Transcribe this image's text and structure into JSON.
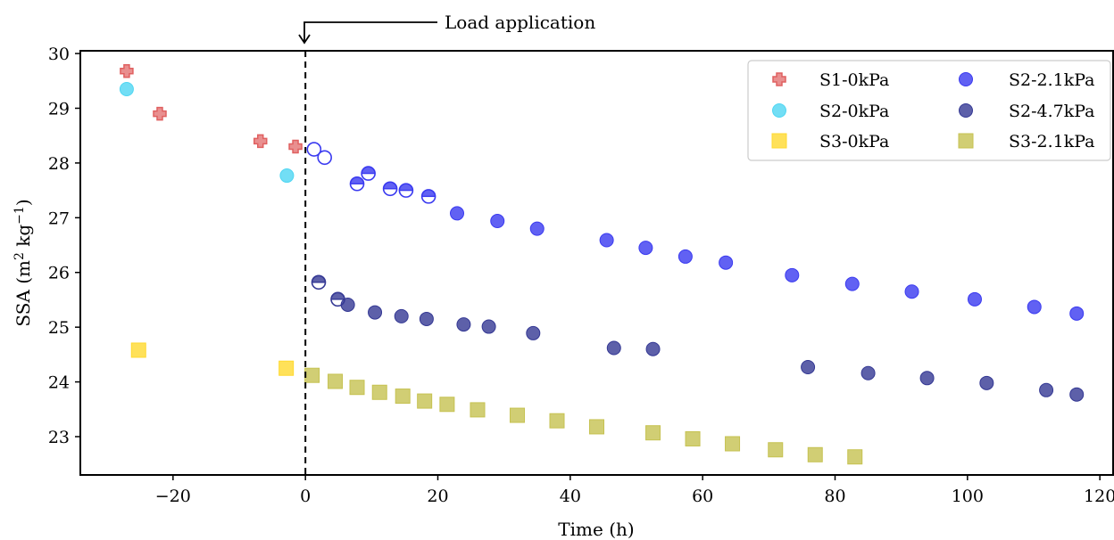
{
  "chart_data": {
    "type": "scatter",
    "xlabel": "Time (h)",
    "ylabel_parts": {
      "base": "SSA (m",
      "sup1": "2",
      "mid": " kg",
      "sup2": "−1",
      "end": ")"
    },
    "xlim": [
      -34,
      122
    ],
    "ylim": [
      22.3,
      30.05
    ],
    "xticks": [
      -20,
      0,
      20,
      40,
      60,
      80,
      100,
      120
    ],
    "yticks": [
      23,
      24,
      25,
      26,
      27,
      28,
      29,
      30
    ],
    "xtick_labels": [
      "−20",
      "0",
      "20",
      "40",
      "60",
      "80",
      "100",
      "120"
    ],
    "ytick_labels": [
      "23",
      "24",
      "25",
      "26",
      "27",
      "28",
      "29",
      "30"
    ],
    "grid": false,
    "legend_position": "top-right",
    "annotation": {
      "text": "Load application",
      "x": 0
    },
    "series": [
      {
        "name": "S1-0kPa",
        "marker": "plus",
        "color": "#e06060",
        "points": [
          [
            -27,
            29.68
          ],
          [
            -22,
            28.9
          ],
          [
            -6.8,
            28.4
          ],
          [
            -1.5,
            28.3
          ]
        ]
      },
      {
        "name": "S2-0kPa",
        "marker": "circle",
        "color": "#4fd6f2",
        "points": [
          [
            -27,
            29.35
          ],
          [
            -2.8,
            27.77
          ]
        ]
      },
      {
        "name": "S3-0kPa",
        "marker": "square",
        "color": "#ffd92f",
        "points": [
          [
            -25.2,
            24.58
          ],
          [
            -2.9,
            24.25
          ]
        ]
      },
      {
        "name": "S2-2.1kPa",
        "marker": "circle",
        "color": "#3a3af0",
        "points": [
          [
            1.3,
            28.25,
            "open"
          ],
          [
            2.9,
            28.1,
            "open"
          ],
          [
            7.8,
            27.62,
            "half"
          ],
          [
            9.5,
            27.81,
            "half"
          ],
          [
            12.8,
            27.53,
            "half"
          ],
          [
            15.2,
            27.5,
            "half"
          ],
          [
            18.6,
            27.39,
            "half"
          ],
          [
            22.9,
            27.08
          ],
          [
            29,
            26.94
          ],
          [
            35,
            26.8
          ],
          [
            45.5,
            26.59
          ],
          [
            51.4,
            26.45
          ],
          [
            57.4,
            26.29
          ],
          [
            63.5,
            26.18
          ],
          [
            73.5,
            25.95
          ],
          [
            82.6,
            25.79
          ],
          [
            91.6,
            25.65
          ],
          [
            101.1,
            25.51
          ],
          [
            110.1,
            25.37
          ],
          [
            116.5,
            25.25
          ]
        ]
      },
      {
        "name": "S2-4.7kPa",
        "marker": "circle",
        "color": "#343894",
        "points": [
          [
            2,
            25.82,
            "half"
          ],
          [
            4.9,
            25.51,
            "half"
          ],
          [
            6.4,
            25.41
          ],
          [
            10.5,
            25.27
          ],
          [
            14.5,
            25.2
          ],
          [
            18.3,
            25.15
          ],
          [
            23.9,
            25.05
          ],
          [
            27.7,
            25.01
          ],
          [
            34.4,
            24.89
          ],
          [
            46.6,
            24.62
          ],
          [
            52.5,
            24.6
          ],
          [
            75.9,
            24.27
          ],
          [
            85,
            24.16
          ],
          [
            93.9,
            24.07
          ],
          [
            102.9,
            23.98
          ],
          [
            111.9,
            23.85
          ],
          [
            116.5,
            23.77
          ]
        ]
      },
      {
        "name": "S3-2.1kPa",
        "marker": "square",
        "color": "#c6c251",
        "points": [
          [
            1,
            24.12
          ],
          [
            4.5,
            24.01
          ],
          [
            7.8,
            23.9
          ],
          [
            11.2,
            23.81
          ],
          [
            14.7,
            23.74
          ],
          [
            18,
            23.65
          ],
          [
            21.4,
            23.59
          ],
          [
            26,
            23.49
          ],
          [
            32,
            23.39
          ],
          [
            38,
            23.29
          ],
          [
            44,
            23.18
          ],
          [
            52.5,
            23.07
          ],
          [
            58.5,
            22.96
          ],
          [
            64.5,
            22.87
          ],
          [
            71,
            22.76
          ],
          [
            77,
            22.67
          ],
          [
            83,
            22.63
          ]
        ]
      }
    ]
  }
}
